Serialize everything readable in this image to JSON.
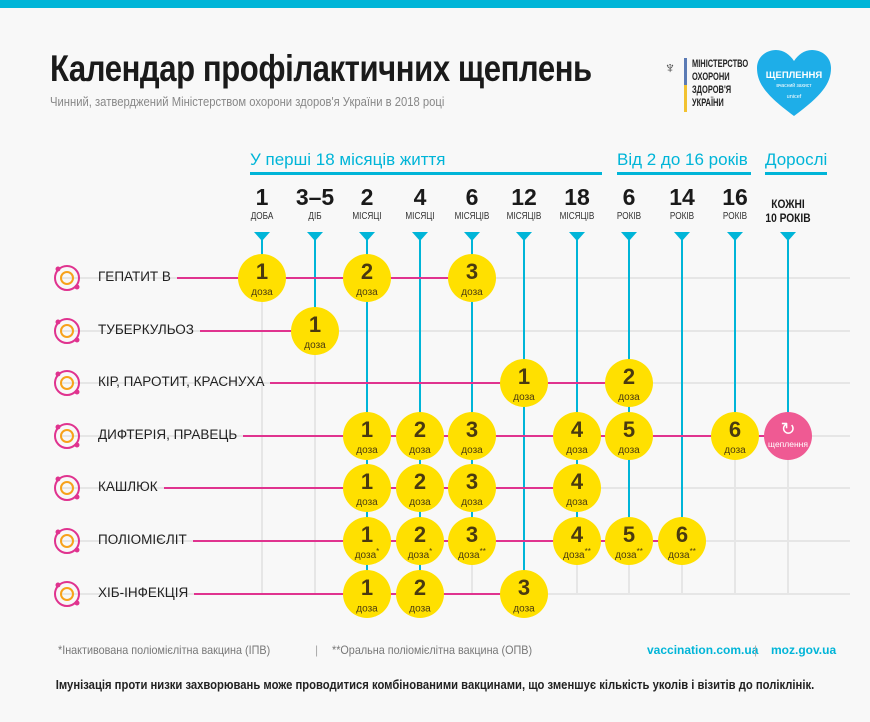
{
  "header": {
    "title": "Календар профілактичних щеплень",
    "subtitle": "Чинний, затверджений Міністерством охорони здоров'я України в 2018 році",
    "ministry_lines": [
      "МІНІСТЕРСТВО",
      "ОХОРОНИ",
      "ЗДОРОВ'Я",
      "УКРАЇНИ"
    ],
    "campaign_logo": {
      "title": "ЩЕПЛЕННЯ",
      "tagline": "вчасний захист",
      "brand": "unicef"
    }
  },
  "groups": [
    {
      "label": "У перші 18 місяців життя"
    },
    {
      "label": "Від 2 до 16 років"
    },
    {
      "label": "Дорослі"
    }
  ],
  "columns": [
    {
      "n": "1",
      "unit": "ДОБА"
    },
    {
      "n": "3–5",
      "unit": "ДІБ"
    },
    {
      "n": "2",
      "unit": "МІСЯЦІ"
    },
    {
      "n": "4",
      "unit": "МІСЯЦІ"
    },
    {
      "n": "6",
      "unit": "МІСЯЦІВ"
    },
    {
      "n": "12",
      "unit": "МІСЯЦІВ"
    },
    {
      "n": "18",
      "unit": "МІСЯЦІВ"
    },
    {
      "n": "6",
      "unit": "РОКІВ"
    },
    {
      "n": "14",
      "unit": "РОКІВ"
    },
    {
      "n": "16",
      "unit": "РОКІВ"
    },
    {
      "n": "КОЖНІ",
      "unit": "10 РОКІВ"
    }
  ],
  "dose_label": "доза",
  "revaccination_label": "щеплення",
  "rows": [
    {
      "label": "ГЕПАТИТ В",
      "icon": "hepatitis-icon",
      "doses": [
        {
          "col": 0,
          "n": "1"
        },
        {
          "col": 2,
          "n": "2"
        },
        {
          "col": 4,
          "n": "3"
        }
      ]
    },
    {
      "label": "ТУБЕРКУЛЬОЗ",
      "icon": "tuberculosis-icon",
      "doses": [
        {
          "col": 1,
          "n": "1"
        }
      ]
    },
    {
      "label": "КІР, ПАРОТИТ, КРАСНУХА",
      "icon": "measles-icon",
      "doses": [
        {
          "col": 5,
          "n": "1"
        },
        {
          "col": 7,
          "n": "2"
        }
      ]
    },
    {
      "label": "ДИФТЕРІЯ, ПРАВЕЦЬ",
      "icon": "diphtheria-icon",
      "doses": [
        {
          "col": 2,
          "n": "1"
        },
        {
          "col": 3,
          "n": "2"
        },
        {
          "col": 4,
          "n": "3"
        },
        {
          "col": 6,
          "n": "4"
        },
        {
          "col": 7,
          "n": "5"
        },
        {
          "col": 9,
          "n": "6"
        },
        {
          "col": 10,
          "n": "",
          "revacc": true
        }
      ]
    },
    {
      "label": "КАШЛЮК",
      "icon": "pertussis-icon",
      "doses": [
        {
          "col": 2,
          "n": "1"
        },
        {
          "col": 3,
          "n": "2"
        },
        {
          "col": 4,
          "n": "3"
        },
        {
          "col": 6,
          "n": "4"
        }
      ]
    },
    {
      "label": "ПОЛІОМІЄЛІТ",
      "icon": "polio-icon",
      "doses": [
        {
          "col": 2,
          "n": "1",
          "mark": "*"
        },
        {
          "col": 3,
          "n": "2",
          "mark": "*"
        },
        {
          "col": 4,
          "n": "3",
          "mark": "**"
        },
        {
          "col": 6,
          "n": "4",
          "mark": "**"
        },
        {
          "col": 7,
          "n": "5",
          "mark": "**"
        },
        {
          "col": 8,
          "n": "6",
          "mark": "**"
        }
      ]
    },
    {
      "label": "ХІБ-ІНФЕКЦІЯ",
      "icon": "hib-icon",
      "doses": [
        {
          "col": 2,
          "n": "1"
        },
        {
          "col": 3,
          "n": "2"
        },
        {
          "col": 5,
          "n": "3"
        }
      ]
    }
  ],
  "footer": {
    "ipv_note": "*Інактивована поліомієлітна вакцина (ІПВ)",
    "opv_note": "**Оральна поліомієлітна вакцина (ОПВ)",
    "link1": "vaccination.com.ua",
    "link2": "moz.gov.ua",
    "note": "Імунізація проти низки захворювань може проводитися комбінованими вакцинами, що зменшує кількість уколів і візитів до поліклінік."
  },
  "colors": {
    "accent": "#00b5d8",
    "row_line": "#e0338f",
    "dose": "#ffe000",
    "revaccination": "#ef5a93",
    "icon": "#e0338f"
  }
}
